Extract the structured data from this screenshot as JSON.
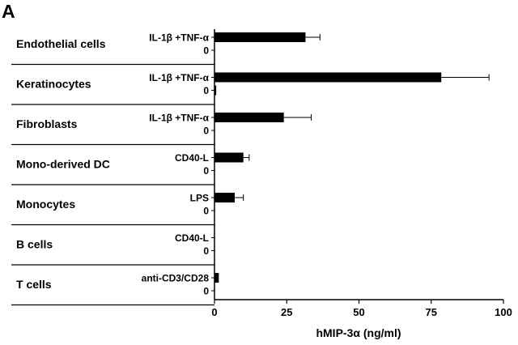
{
  "panel_label": "A",
  "chart_data": {
    "type": "bar",
    "orientation": "horizontal",
    "xlabel": "hMIP-3α (ng/ml)",
    "xlim": [
      0,
      100
    ],
    "xticks": [
      "0",
      "25",
      "50",
      "75",
      "100"
    ],
    "groups": [
      {
        "name": "Endothelial cells",
        "bars": [
          {
            "label": "IL-1β +TNF-α",
            "value": 31.5,
            "error": 5
          },
          {
            "label": "0",
            "value": 0,
            "error": 0
          }
        ]
      },
      {
        "name": "Keratinocytes",
        "bars": [
          {
            "label": "IL-1β +TNF-α",
            "value": 78.5,
            "error": 16.5
          },
          {
            "label": "0",
            "value": 0.6,
            "error": 0
          }
        ]
      },
      {
        "name": "Fibroblasts",
        "bars": [
          {
            "label": "IL-1β +TNF-α",
            "value": 24,
            "error": 9.5
          },
          {
            "label": "0",
            "value": 0,
            "error": 0
          }
        ]
      },
      {
        "name": "Mono-derived DC",
        "bars": [
          {
            "label": "CD40-L",
            "value": 10,
            "error": 2
          },
          {
            "label": "0",
            "value": 0,
            "error": 0
          }
        ]
      },
      {
        "name": "Monocytes",
        "bars": [
          {
            "label": "LPS",
            "value": 7,
            "error": 3
          },
          {
            "label": "0",
            "value": 0,
            "error": 0
          }
        ]
      },
      {
        "name": "B cells",
        "bars": [
          {
            "label": "CD40-L",
            "value": 0,
            "error": 0
          },
          {
            "label": "0",
            "value": 0,
            "error": 0
          }
        ]
      },
      {
        "name": "T  cells",
        "bars": [
          {
            "label": "anti-CD3/CD28",
            "value": 1.5,
            "error": 0
          },
          {
            "label": "0",
            "value": 0,
            "error": 0
          }
        ]
      }
    ],
    "grid": false,
    "legend": "none"
  }
}
